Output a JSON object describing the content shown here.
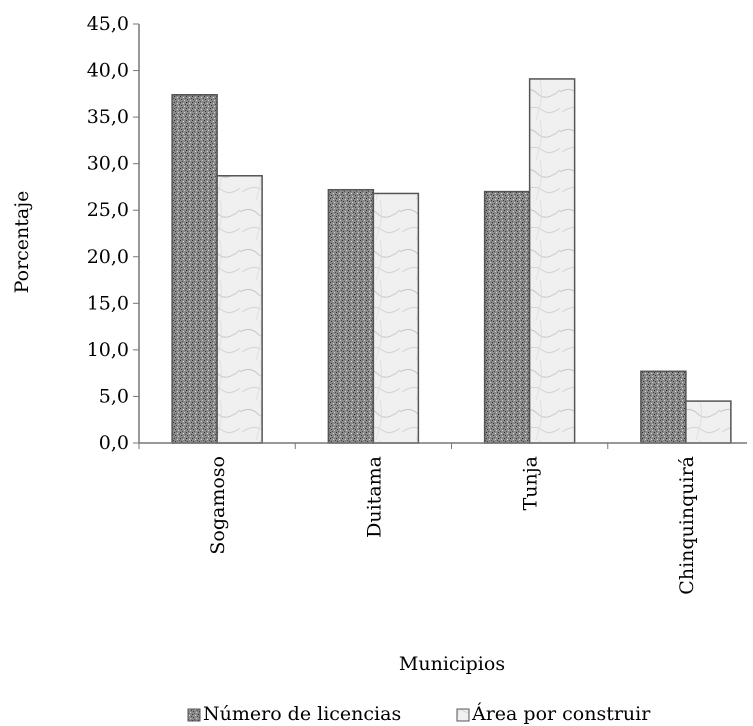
{
  "chart_data": {
    "type": "bar",
    "categories": [
      "Sogamoso",
      "Duitama",
      "Tunja",
      "Chinquinquirá"
    ],
    "series": [
      {
        "name": "Número de licencias",
        "values": [
          37.4,
          27.2,
          27.0,
          7.7
        ],
        "color": "#8f8f8f"
      },
      {
        "name": "Área por construir",
        "values": [
          28.7,
          26.8,
          39.1,
          4.5
        ],
        "color": "#eeeeee"
      }
    ],
    "ylim": [
      0,
      45
    ],
    "yticks": [
      "0,0",
      "5,0",
      "10,0",
      "15,0",
      "20,0",
      "25,0",
      "30,0",
      "35,0",
      "40,0",
      "45,0"
    ],
    "xlabel": "Municipios",
    "ylabel": "Porcentaje",
    "grid": false,
    "legend": "bottom"
  }
}
